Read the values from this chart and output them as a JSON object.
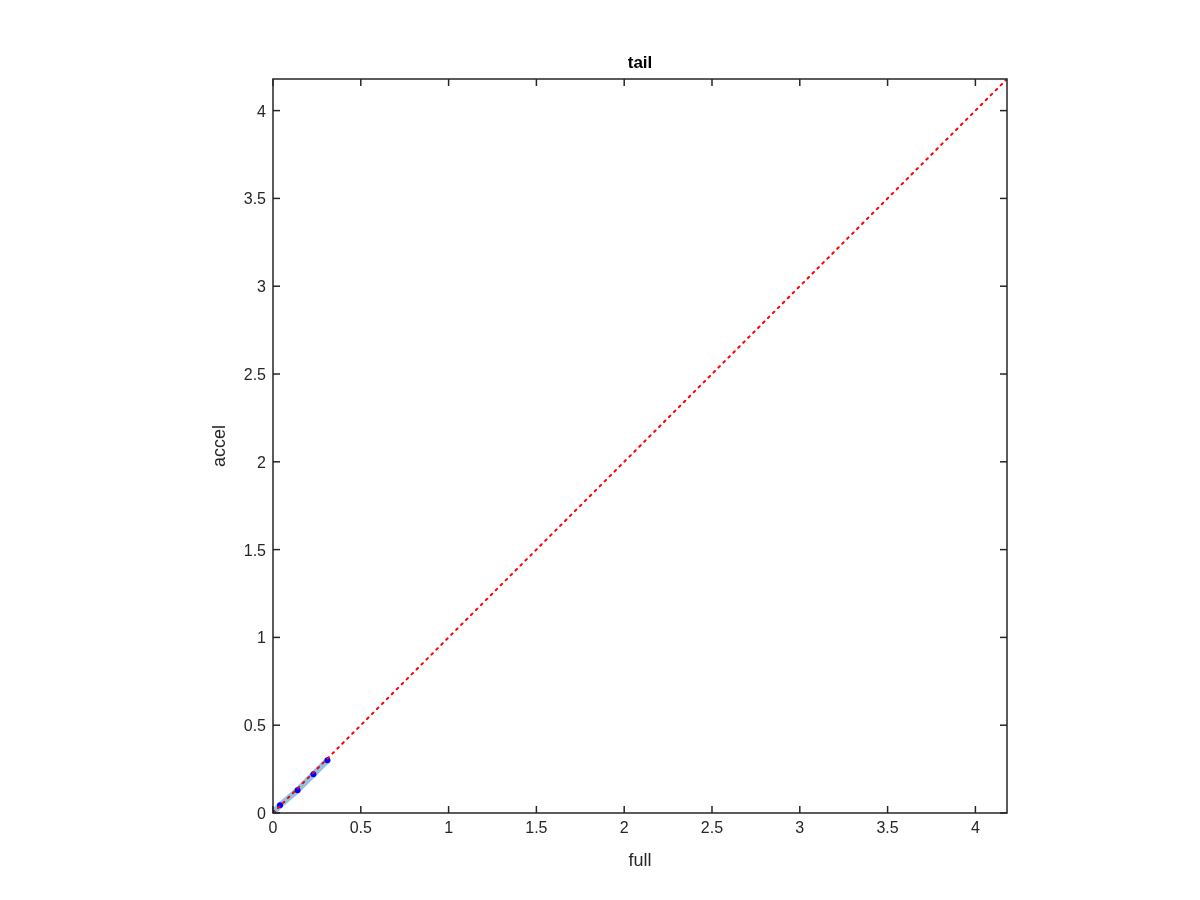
{
  "chart_data": {
    "type": "line",
    "title": "tail",
    "xlabel": "full",
    "ylabel": "accel",
    "xlim": [
      0,
      4.18
    ],
    "ylim": [
      0,
      4.18
    ],
    "xticks": [
      0,
      0.5,
      1,
      1.5,
      2,
      2.5,
      3,
      3.5,
      4
    ],
    "yticks": [
      0,
      0.5,
      1,
      1.5,
      2,
      2.5,
      3,
      3.5,
      4
    ],
    "grid": false,
    "series": [
      {
        "color": "#8fc3e3",
        "x": [
          0,
          0.04,
          0.14,
          0.23,
          0.31
        ],
        "values": [
          0,
          0.044,
          0.13,
          0.22,
          0.3
        ],
        "marker": "none",
        "line_style": "solid"
      },
      {
        "type": "scatter",
        "color": "#0000ff",
        "x": [
          0,
          0.04,
          0.14,
          0.23,
          0.31
        ],
        "values": [
          0,
          0.044,
          0.13,
          0.22,
          0.3
        ],
        "marker": "circle"
      },
      {
        "color": "#ff0000",
        "x": [
          0,
          4.18
        ],
        "values": [
          0,
          4.18
        ],
        "marker": "none",
        "line_style": "dotted"
      }
    ]
  }
}
